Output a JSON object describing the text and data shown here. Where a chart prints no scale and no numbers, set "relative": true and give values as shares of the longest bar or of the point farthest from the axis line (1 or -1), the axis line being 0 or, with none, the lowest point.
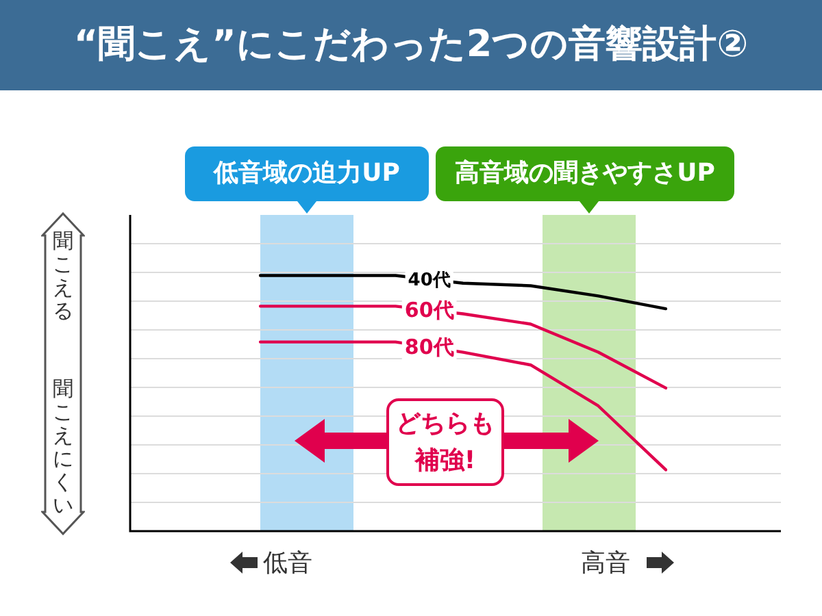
{
  "chart_data": {
    "type": "line",
    "relative": true,
    "title": "“聞こえ”にこだわった2つの音響設計②",
    "categories": [
      null,
      null,
      null,
      null,
      null,
      null,
      null
    ],
    "grid": "y",
    "marker": "none",
    "line_style": "solid",
    "series": [
      {
        "name": "40代",
        "color": "#000000",
        "values": [
          1,
          1,
          1,
          0.97,
          0.96,
          0.92,
          0.87
        ]
      },
      {
        "name": "60代",
        "color": "#e0004d",
        "values": [
          0.88,
          0.88,
          0.88,
          0.85,
          0.81,
          0.7,
          0.56
        ]
      },
      {
        "name": "80代",
        "color": "#e0004d",
        "values": [
          0.74,
          0.74,
          0.74,
          0.7,
          0.65,
          0.49,
          0.24
        ]
      }
    ],
    "annotations": [
      "低音域の迫力UP",
      "高音域の聞きやすさUP",
      "聞こえる",
      "聞こえにくい",
      "どちらも補強!",
      "低音",
      "高音"
    ]
  }
}
